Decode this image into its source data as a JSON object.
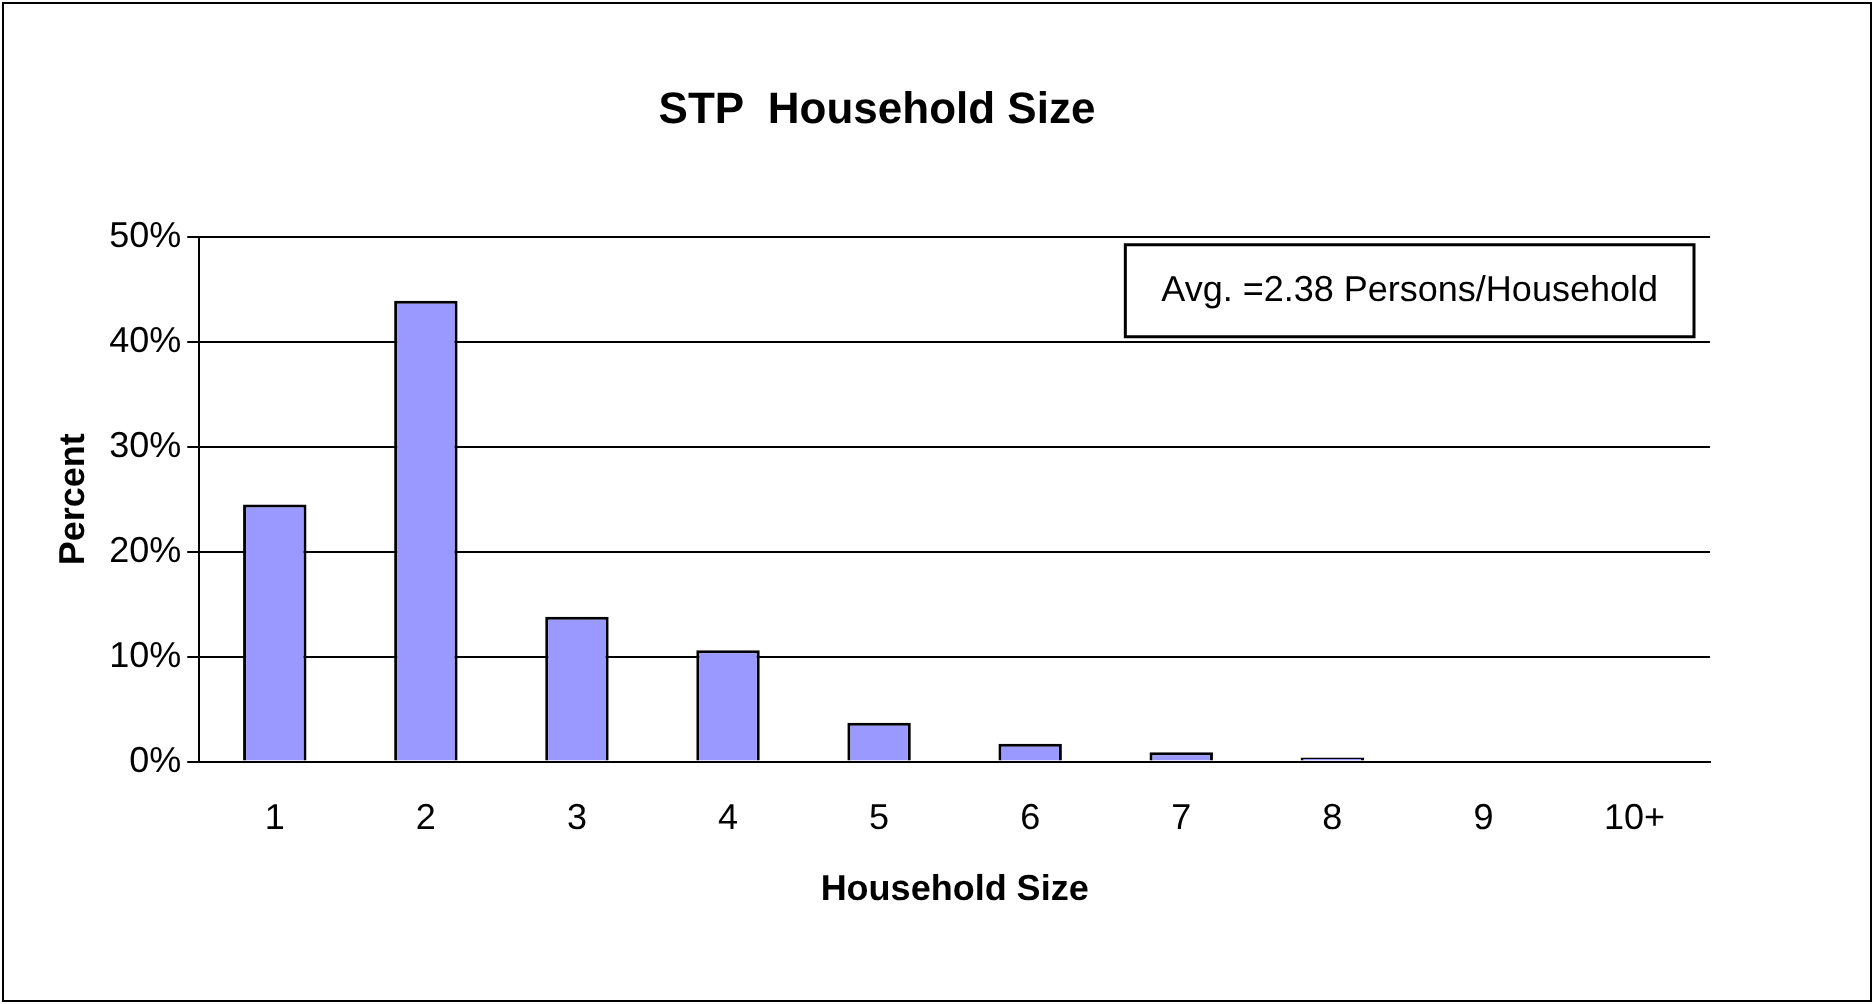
{
  "chart_data": {
    "type": "bar",
    "title": "STP  Household Size",
    "xlabel": "Household Size",
    "ylabel": "Percent",
    "categories": [
      "1",
      "2",
      "3",
      "4",
      "5",
      "6",
      "7",
      "8",
      "9",
      "10+"
    ],
    "values": [
      24.5,
      43.9,
      13.8,
      10.6,
      3.7,
      1.7,
      0.9,
      0.4,
      0,
      0
    ],
    "color": "#9999ff",
    "ylim": [
      0,
      50
    ],
    "yticks": [
      {
        "value": 0,
        "label": "0%"
      },
      {
        "value": 10,
        "label": "10%"
      },
      {
        "value": 20,
        "label": "20%"
      },
      {
        "value": 30,
        "label": "30%"
      },
      {
        "value": 40,
        "label": "40%"
      },
      {
        "value": 50,
        "label": "50%"
      }
    ],
    "grid": "y",
    "legend": false,
    "annotations": [
      "Avg. =2.38 Persons/Household"
    ]
  }
}
